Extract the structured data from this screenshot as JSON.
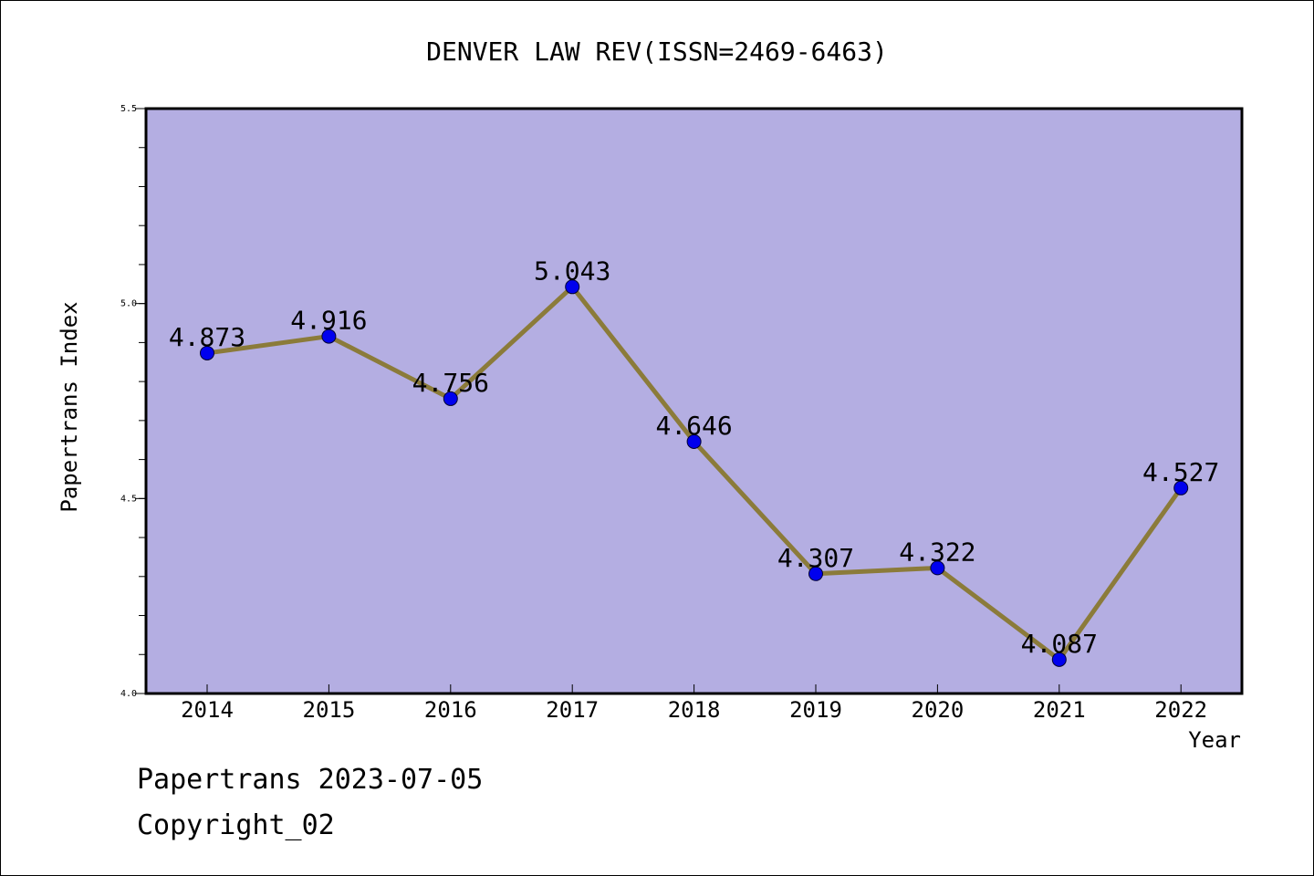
{
  "chart_data": {
    "type": "line",
    "title": "DENVER LAW REV(ISSN=2469-6463)",
    "xlabel": "Year",
    "ylabel": "Papertrans Index",
    "categories": [
      "2014",
      "2015",
      "2016",
      "2017",
      "2018",
      "2019",
      "2020",
      "2021",
      "2022"
    ],
    "values": [
      4.873,
      4.916,
      4.756,
      5.043,
      4.646,
      4.307,
      4.322,
      4.087,
      4.527
    ],
    "value_labels": [
      "4.873",
      "4.916",
      "4.756",
      "5.043",
      "4.646",
      "4.307",
      "4.322",
      "4.087",
      "4.527"
    ],
    "ylim": [
      4.0,
      5.5
    ],
    "y_ticks": [
      4.0,
      4.5,
      5.0,
      5.5
    ],
    "y_tick_labels": [
      "4.0",
      "4.5",
      "5.0",
      "5.5"
    ],
    "grid": false,
    "colors": {
      "plot_background": "#b4aee2",
      "line": "#8b7b3a",
      "marker": "#0000ee"
    }
  },
  "footer": {
    "line1": "Papertrans 2023-07-05",
    "line2": "Copyright_02"
  }
}
